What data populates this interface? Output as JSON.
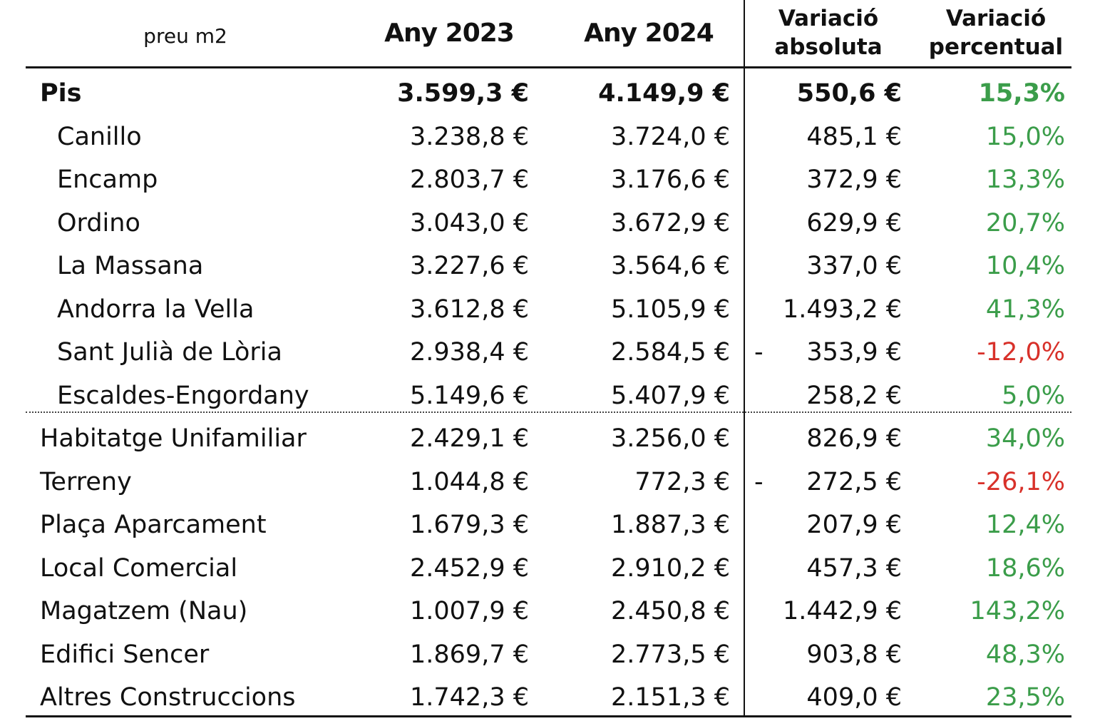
{
  "header": {
    "label": "preu m2",
    "year_2023": "Any 2023",
    "year_2024": "Any 2024",
    "abs_line1": "Variació",
    "abs_line2": "absoluta",
    "pct_line1": "Variació",
    "pct_line2": "percentual"
  },
  "colors": {
    "positive": "#3b9d4a",
    "negative": "#d8312a"
  },
  "rows": [
    {
      "name": "Pis",
      "v2023": "3.599,3 €",
      "v2024": "4.149,9 €",
      "sign": "",
      "abs": "550,6 €",
      "pct": "15,3%"
    },
    {
      "name": "Canillo",
      "v2023": "3.238,8 €",
      "v2024": "3.724,0 €",
      "sign": "",
      "abs": "485,1 €",
      "pct": "15,0%"
    },
    {
      "name": "Encamp",
      "v2023": "2.803,7 €",
      "v2024": "3.176,6 €",
      "sign": "",
      "abs": "372,9 €",
      "pct": "13,3%"
    },
    {
      "name": "Ordino",
      "v2023": "3.043,0 €",
      "v2024": "3.672,9 €",
      "sign": "",
      "abs": "629,9 €",
      "pct": "20,7%"
    },
    {
      "name": "La Massana",
      "v2023": "3.227,6 €",
      "v2024": "3.564,6 €",
      "sign": "",
      "abs": "337,0 €",
      "pct": "10,4%"
    },
    {
      "name": "Andorra la Vella",
      "v2023": "3.612,8 €",
      "v2024": "5.105,9 €",
      "sign": "",
      "abs": "1.493,2 €",
      "pct": "41,3%"
    },
    {
      "name": "Sant Julià de Lòria",
      "v2023": "2.938,4 €",
      "v2024": "2.584,5 €",
      "sign": "-",
      "abs": "353,9 €",
      "pct": "-12,0%"
    },
    {
      "name": "Escaldes-Engordany",
      "v2023": "5.149,6 €",
      "v2024": "5.407,9 €",
      "sign": "",
      "abs": "258,2 €",
      "pct": "5,0%"
    },
    {
      "name": "Habitatge Unifamiliar",
      "v2023": "2.429,1 €",
      "v2024": "3.256,0 €",
      "sign": "",
      "abs": "826,9 €",
      "pct": "34,0%"
    },
    {
      "name": "Terreny",
      "v2023": "1.044,8 €",
      "v2024": "772,3 €",
      "sign": "-",
      "abs": "272,5 €",
      "pct": "-26,1%"
    },
    {
      "name": "Plaça Aparcament",
      "v2023": "1.679,3 €",
      "v2024": "1.887,3 €",
      "sign": "",
      "abs": "207,9 €",
      "pct": "12,4%"
    },
    {
      "name": "Local Comercial",
      "v2023": "2.452,9 €",
      "v2024": "2.910,2 €",
      "sign": "",
      "abs": "457,3 €",
      "pct": "18,6%"
    },
    {
      "name": "Magatzem (Nau)",
      "v2023": "1.007,9 €",
      "v2024": "2.450,8 €",
      "sign": "",
      "abs": "1.442,9 €",
      "pct": "143,2%"
    },
    {
      "name": "Edifici Sencer",
      "v2023": "1.869,7 €",
      "v2024": "2.773,5 €",
      "sign": "",
      "abs": "903,8 €",
      "pct": "48,3%"
    },
    {
      "name": "Altres Construccions",
      "v2023": "1.742,3 €",
      "v2024": "2.151,3 €",
      "sign": "",
      "abs": "409,0 €",
      "pct": "23,5%"
    }
  ]
}
